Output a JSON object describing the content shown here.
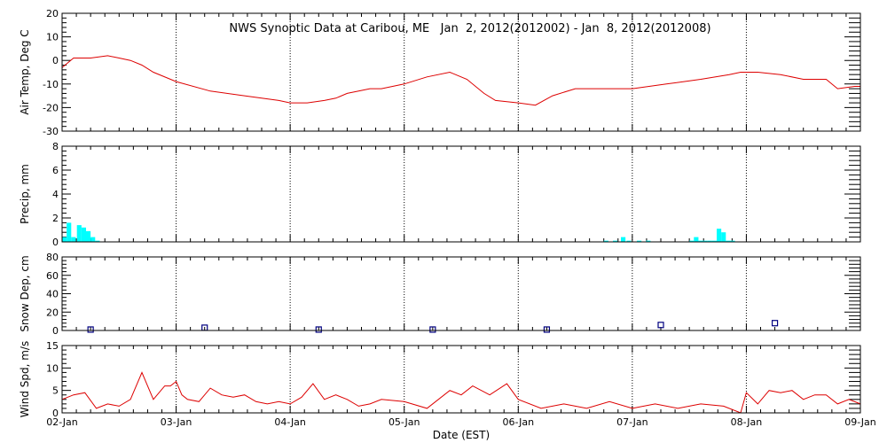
{
  "chart_data": {
    "type": "line",
    "title": "NWS Synoptic Data at Caribou, ME   Jan  2, 2012(2012002) - Jan  8, 2012(2012008)",
    "xlabel": "Date (EST)",
    "x_ticks": [
      "02-Jan",
      "03-Jan",
      "04-Jan",
      "05-Jan",
      "06-Jan",
      "07-Jan",
      "08-Jan",
      "09-Jan"
    ],
    "xlim_days": [
      0,
      7
    ],
    "colors": {
      "temp": "#dd0000",
      "precip": "#00ffff",
      "snow": "#000080",
      "wind": "#dd0000",
      "grid": "#000000"
    },
    "panels": [
      {
        "id": "temp",
        "ylabel": "Air Temp, Deg C",
        "ylim": [
          -30,
          20
        ],
        "yticks": [
          "20",
          "10",
          "0",
          "-10",
          "-20",
          "-30"
        ],
        "ytick_values": [
          20,
          10,
          0,
          -10,
          -20,
          -30
        ],
        "series": {
          "kind": "line",
          "x": [
            0,
            0.1,
            0.25,
            0.4,
            0.5,
            0.6,
            0.7,
            0.8,
            1.0,
            1.3,
            1.6,
            1.9,
            2.0,
            2.15,
            2.3,
            2.4,
            2.5,
            2.6,
            2.7,
            2.8,
            3.0,
            3.2,
            3.4,
            3.55,
            3.7,
            3.8,
            4.0,
            4.15,
            4.3,
            4.5,
            4.7,
            5.0,
            5.3,
            5.6,
            5.85,
            5.95,
            6.1,
            6.3,
            6.5,
            6.7,
            6.8,
            6.95,
            7.0
          ],
          "y": [
            -3,
            1,
            1,
            2,
            1,
            0,
            -2,
            -5,
            -9,
            -13,
            -15,
            -17,
            -18,
            -18,
            -17,
            -16,
            -14,
            -13,
            -12,
            -12,
            -10,
            -7,
            -5,
            -8,
            -14,
            -17,
            -18,
            -19,
            -15,
            -12,
            -12,
            -12,
            -10,
            -8,
            -6,
            -5,
            -5,
            -6,
            -8,
            -8,
            -12,
            -11,
            -11
          ]
        }
      },
      {
        "id": "precip",
        "ylabel": "Precip, mm",
        "ylim": [
          0,
          8
        ],
        "yticks": [
          "8",
          "6",
          "4",
          "2",
          "0"
        ],
        "ytick_values": [
          8,
          6,
          4,
          2,
          0
        ],
        "series": {
          "kind": "bar",
          "x": [
            0.0,
            0.04,
            0.08,
            0.13,
            0.17,
            0.21,
            0.25,
            0.29,
            4.75,
            4.83,
            4.9,
            4.95,
            5.04,
            5.12,
            5.5,
            5.54,
            5.58,
            5.62,
            5.66,
            5.7,
            5.74,
            5.78,
            5.82,
            5.86
          ],
          "y": [
            0.4,
            1.6,
            0.4,
            1.4,
            1.2,
            0.9,
            0.4,
            0.1,
            0.1,
            0.1,
            0.4,
            0.1,
            0.1,
            0.1,
            0.1,
            0.4,
            0.1,
            0.1,
            0.1,
            0.1,
            1.1,
            0.8,
            0.1,
            0.1
          ],
          "width": 0.04
        }
      },
      {
        "id": "snow",
        "ylabel": "Snow Dep, cm",
        "ylim": [
          0,
          80
        ],
        "yticks": [
          "80",
          "60",
          "40",
          "20",
          "0"
        ],
        "ytick_values": [
          80,
          60,
          40,
          20,
          0
        ],
        "series": {
          "kind": "markers",
          "x": [
            0.25,
            1.25,
            2.25,
            3.25,
            4.25,
            5.25,
            6.25
          ],
          "y": [
            1,
            3,
            1,
            1,
            1,
            6,
            8
          ]
        }
      },
      {
        "id": "wind",
        "ylabel": "Wind Spd, m/s",
        "ylim": [
          0,
          15
        ],
        "yticks": [
          "15",
          "10",
          "5",
          "0"
        ],
        "ytick_values": [
          15,
          10,
          5,
          0
        ],
        "series": {
          "kind": "line",
          "x": [
            0,
            0.1,
            0.2,
            0.3,
            0.4,
            0.5,
            0.6,
            0.7,
            0.75,
            0.8,
            0.9,
            0.95,
            1.0,
            1.05,
            1.1,
            1.2,
            1.3,
            1.4,
            1.5,
            1.6,
            1.7,
            1.8,
            1.9,
            2.0,
            2.1,
            2.2,
            2.3,
            2.4,
            2.5,
            2.6,
            2.7,
            2.8,
            3.0,
            3.2,
            3.4,
            3.5,
            3.6,
            3.75,
            3.9,
            4.0,
            4.2,
            4.4,
            4.6,
            4.8,
            5.0,
            5.2,
            5.4,
            5.6,
            5.8,
            5.95,
            6.0,
            6.1,
            6.2,
            6.3,
            6.4,
            6.5,
            6.6,
            6.7,
            6.8,
            6.9,
            7.0
          ],
          "y": [
            3,
            4,
            4.5,
            1,
            2,
            1.5,
            3,
            9,
            6,
            3,
            6,
            6,
            7,
            4,
            3,
            2.5,
            5.5,
            4,
            3.5,
            4,
            2.5,
            2,
            2.5,
            2,
            3.5,
            6.5,
            3,
            4,
            3,
            1.5,
            2,
            3,
            2.5,
            1,
            5,
            4,
            6,
            4,
            6.5,
            3,
            1,
            2,
            1,
            2.5,
            1,
            2,
            1,
            2,
            1.5,
            0,
            4.5,
            2,
            5,
            4.5,
            5,
            3,
            4,
            4,
            2,
            3,
            2
          ]
        }
      }
    ]
  }
}
